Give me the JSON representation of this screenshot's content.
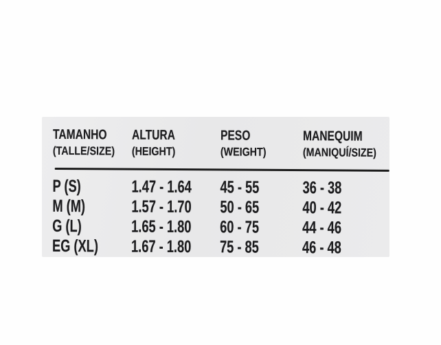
{
  "page": {
    "background": "#ffffff"
  },
  "panel": {
    "background": "#e9e9ea",
    "text_color": "#1c1c1e",
    "divider_color": "#1b1b1b"
  },
  "chart_data": {
    "type": "table",
    "title": "",
    "layout": {
      "header_divider": true,
      "grid": "off",
      "columns_count": 4,
      "rows_count": 4
    },
    "columns": [
      {
        "title": "TAMANHO",
        "subtitle": "(TALLE/SIZE)"
      },
      {
        "title": "ALTURA",
        "subtitle": "(HEIGHT)"
      },
      {
        "title": "PESO",
        "subtitle": "(WEIGHT)"
      },
      {
        "title": "MANEQUIM",
        "subtitle": "(MANIQUÍ/SIZE)"
      }
    ],
    "rows": [
      [
        "P (S)",
        "1.47 - 1.64",
        "45 - 55",
        "36 - 38"
      ],
      [
        "M (M)",
        "1.57 - 1.70",
        "50 - 65",
        "40 - 42"
      ],
      [
        "G (L)",
        "1.65 - 1.80",
        "60 - 75",
        "44 - 46"
      ],
      [
        "EG (XL)",
        "1.67 - 1.80",
        "75 - 85",
        "46 - 48"
      ]
    ]
  }
}
